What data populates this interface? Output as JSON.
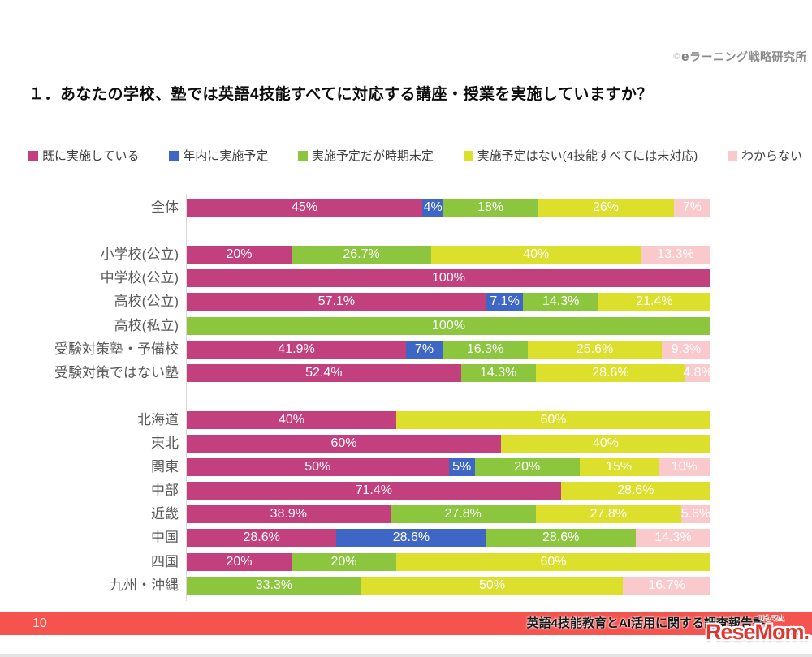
{
  "header": {
    "copyright_symbol": "©",
    "copyright_name": "eラーニング戦略研究所",
    "title": "１．あなたの学校、塾では英語4技能すべてに対応する講座・授業を実施していますか？"
  },
  "colors": {
    "footer_bar": "#f4534e",
    "watermark_red": "#e0342f",
    "axis_line": "#d9d9d9"
  },
  "chart_data": {
    "type": "bar",
    "subtype": "horizontal-stacked",
    "unit": "percent",
    "xlim": [
      0,
      100
    ],
    "legend_position": "top",
    "series": [
      {
        "name": "既に実施している",
        "color": "#c2407d"
      },
      {
        "name": "年内に実施予定",
        "color": "#3e66c4"
      },
      {
        "name": "実施予定だが時期未定",
        "color": "#8cc63e"
      },
      {
        "name": "実施予定はない(4技能すべてには未対応)",
        "color": "#dcdf2b"
      },
      {
        "name": "わからない",
        "color": "#f9c9cc"
      }
    ],
    "groups": [
      {
        "rows": [
          {
            "label": "全体",
            "segments": [
              {
                "series": 0,
                "value": 45,
                "label": "45%"
              },
              {
                "series": 1,
                "value": 4,
                "label": "4%"
              },
              {
                "series": 2,
                "value": 18,
                "label": "18%"
              },
              {
                "series": 3,
                "value": 26,
                "label": "26%"
              },
              {
                "series": 4,
                "value": 7,
                "label": "7%"
              }
            ]
          }
        ]
      },
      {
        "rows": [
          {
            "label": "小学校(公立)",
            "segments": [
              {
                "series": 0,
                "value": 20,
                "label": "20%"
              },
              {
                "series": 2,
                "value": 26.7,
                "label": "26.7%"
              },
              {
                "series": 3,
                "value": 40,
                "label": "40%"
              },
              {
                "series": 4,
                "value": 13.3,
                "label": "13.3%"
              }
            ]
          },
          {
            "label": "中学校(公立)",
            "segments": [
              {
                "series": 0,
                "value": 100,
                "label": "100%"
              }
            ]
          },
          {
            "label": "高校(公立)",
            "segments": [
              {
                "series": 0,
                "value": 57.1,
                "label": "57.1%"
              },
              {
                "series": 1,
                "value": 7.1,
                "label": "7.1%"
              },
              {
                "series": 2,
                "value": 14.3,
                "label": "14.3%"
              },
              {
                "series": 3,
                "value": 21.4,
                "label": "21.4%"
              }
            ]
          },
          {
            "label": "高校(私立)",
            "segments": [
              {
                "series": 2,
                "value": 100,
                "label": "100%"
              }
            ]
          },
          {
            "label": "受験対策塾・予備校",
            "segments": [
              {
                "series": 0,
                "value": 41.9,
                "label": "41.9%"
              },
              {
                "series": 1,
                "value": 7,
                "label": "7%"
              },
              {
                "series": 2,
                "value": 16.3,
                "label": "16.3%"
              },
              {
                "series": 3,
                "value": 25.6,
                "label": "25.6%"
              },
              {
                "series": 4,
                "value": 9.3,
                "label": "9.3%"
              }
            ]
          },
          {
            "label": "受験対策ではない塾",
            "segments": [
              {
                "series": 0,
                "value": 52.4,
                "label": "52.4%"
              },
              {
                "series": 2,
                "value": 14.3,
                "label": "14.3%"
              },
              {
                "series": 3,
                "value": 28.6,
                "label": "28.6%"
              },
              {
                "series": 4,
                "value": 4.8,
                "label": "4.8%"
              }
            ]
          }
        ]
      },
      {
        "rows": [
          {
            "label": "北海道",
            "segments": [
              {
                "series": 0,
                "value": 40,
                "label": "40%"
              },
              {
                "series": 3,
                "value": 60,
                "label": "60%"
              }
            ]
          },
          {
            "label": "東北",
            "segments": [
              {
                "series": 0,
                "value": 60,
                "label": "60%"
              },
              {
                "series": 3,
                "value": 40,
                "label": "40%"
              }
            ]
          },
          {
            "label": "関東",
            "segments": [
              {
                "series": 0,
                "value": 50,
                "label": "50%"
              },
              {
                "series": 1,
                "value": 5,
                "label": "5%"
              },
              {
                "series": 2,
                "value": 20,
                "label": "20%"
              },
              {
                "series": 3,
                "value": 15,
                "label": "15%"
              },
              {
                "series": 4,
                "value": 10,
                "label": "10%"
              }
            ]
          },
          {
            "label": "中部",
            "segments": [
              {
                "series": 0,
                "value": 71.4,
                "label": "71.4%"
              },
              {
                "series": 3,
                "value": 28.6,
                "label": "28.6%"
              }
            ]
          },
          {
            "label": "近畿",
            "segments": [
              {
                "series": 0,
                "value": 38.9,
                "label": "38.9%"
              },
              {
                "series": 2,
                "value": 27.8,
                "label": "27.8%"
              },
              {
                "series": 3,
                "value": 27.8,
                "label": "27.8%"
              },
              {
                "series": 4,
                "value": 5.6,
                "label": "5.6%"
              }
            ]
          },
          {
            "label": "中国",
            "segments": [
              {
                "series": 0,
                "value": 28.6,
                "label": "28.6%"
              },
              {
                "series": 1,
                "value": 28.6,
                "label": "28.6%"
              },
              {
                "series": 2,
                "value": 28.6,
                "label": "28.6%"
              },
              {
                "series": 4,
                "value": 14.3,
                "label": "14.3%"
              }
            ]
          },
          {
            "label": "四国",
            "segments": [
              {
                "series": 0,
                "value": 20,
                "label": "20%"
              },
              {
                "series": 2,
                "value": 20,
                "label": "20%"
              },
              {
                "series": 3,
                "value": 60,
                "label": "60%"
              }
            ]
          },
          {
            "label": "九州・沖縄",
            "segments": [
              {
                "series": 2,
                "value": 33.3,
                "label": "33.3%"
              },
              {
                "series": 3,
                "value": 50,
                "label": "50%"
              },
              {
                "series": 4,
                "value": 16.7,
                "label": "16.7%"
              }
            ]
          }
        ]
      }
    ]
  },
  "footer": {
    "page_number": "10",
    "report_title": "英語4技能教育とAI活用に関する調査報告書"
  },
  "watermark": {
    "text": "ReseMom.",
    "furigana": "リセマム"
  }
}
